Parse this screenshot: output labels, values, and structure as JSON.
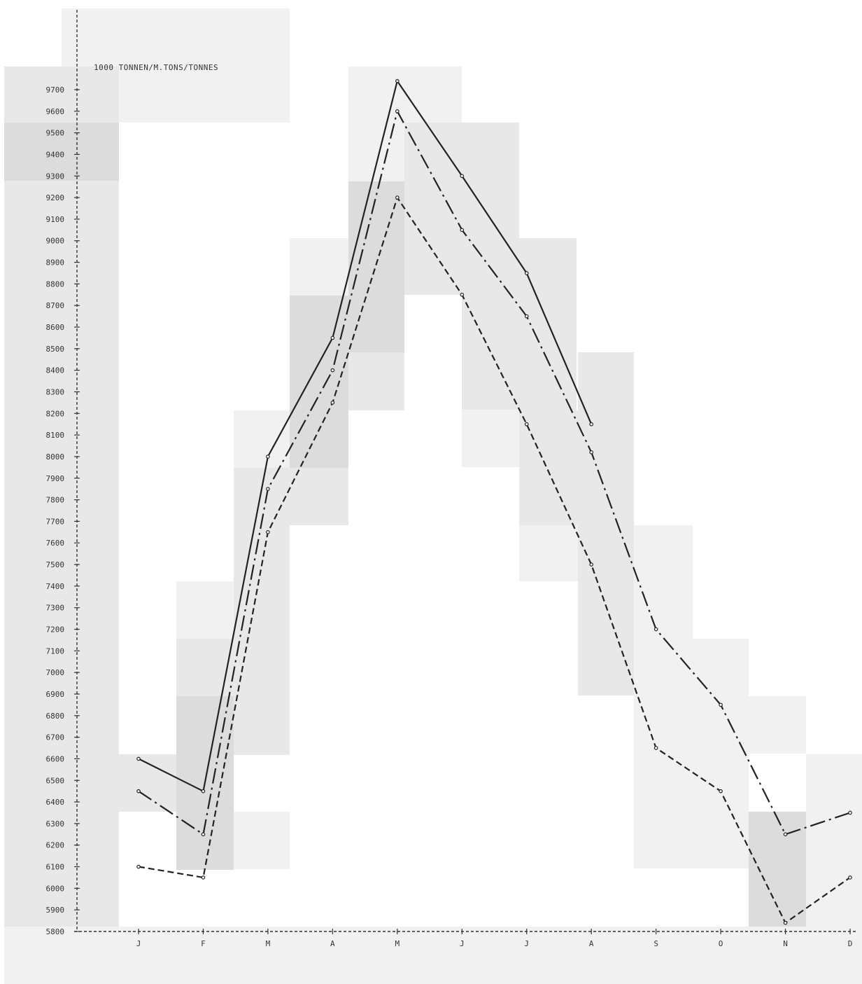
{
  "chart_data": {
    "type": "line",
    "unit_label": "1000 TONNEN/M.TONS/TONNES",
    "categories": [
      "J",
      "F",
      "M",
      "A",
      "M",
      "J",
      "J",
      "A",
      "S",
      "O",
      "N",
      "D"
    ],
    "ylim": [
      5800,
      9800
    ],
    "yticks": [
      5800,
      5900,
      6000,
      6100,
      6200,
      6300,
      6400,
      6500,
      6600,
      6700,
      6800,
      6900,
      7000,
      7100,
      7200,
      7300,
      7400,
      7500,
      7600,
      7700,
      7800,
      7900,
      8000,
      8100,
      8200,
      8300,
      8400,
      8500,
      8600,
      8700,
      8800,
      8900,
      9000,
      9100,
      9200,
      9300,
      9400,
      9500,
      9600,
      9700
    ],
    "ytick_labels": [
      "5800",
      "5900",
      "6000",
      "6100",
      "6200",
      "6300",
      "6400",
      "6500",
      "6600",
      "6700",
      "6800",
      "6900",
      "7000",
      "7100",
      "7200",
      "7300",
      "7400",
      "7500",
      "7600",
      "7700",
      "7800",
      "7900",
      "8000",
      "8100",
      "8200",
      "8300",
      "8400",
      "8500",
      "8600",
      "8700",
      "8800",
      "8900",
      "9000",
      "9100",
      "9200",
      "9300",
      "9400",
      "9500",
      "9600",
      "9700"
    ],
    "grid": false,
    "series": [
      {
        "style": "solid",
        "values": [
          6600,
          6450,
          8000,
          8550,
          9740,
          9300,
          8850,
          8150,
          null,
          null,
          null,
          null
        ]
      },
      {
        "style": "dash-dot",
        "values": [
          6450,
          6250,
          7850,
          8400,
          9600,
          9050,
          8650,
          8020,
          7200,
          6850,
          6250,
          6350
        ]
      },
      {
        "style": "dashed",
        "values": [
          6100,
          6050,
          7650,
          8250,
          9200,
          8750,
          8150,
          7500,
          6650,
          6450,
          5840,
          6050
        ]
      }
    ]
  }
}
